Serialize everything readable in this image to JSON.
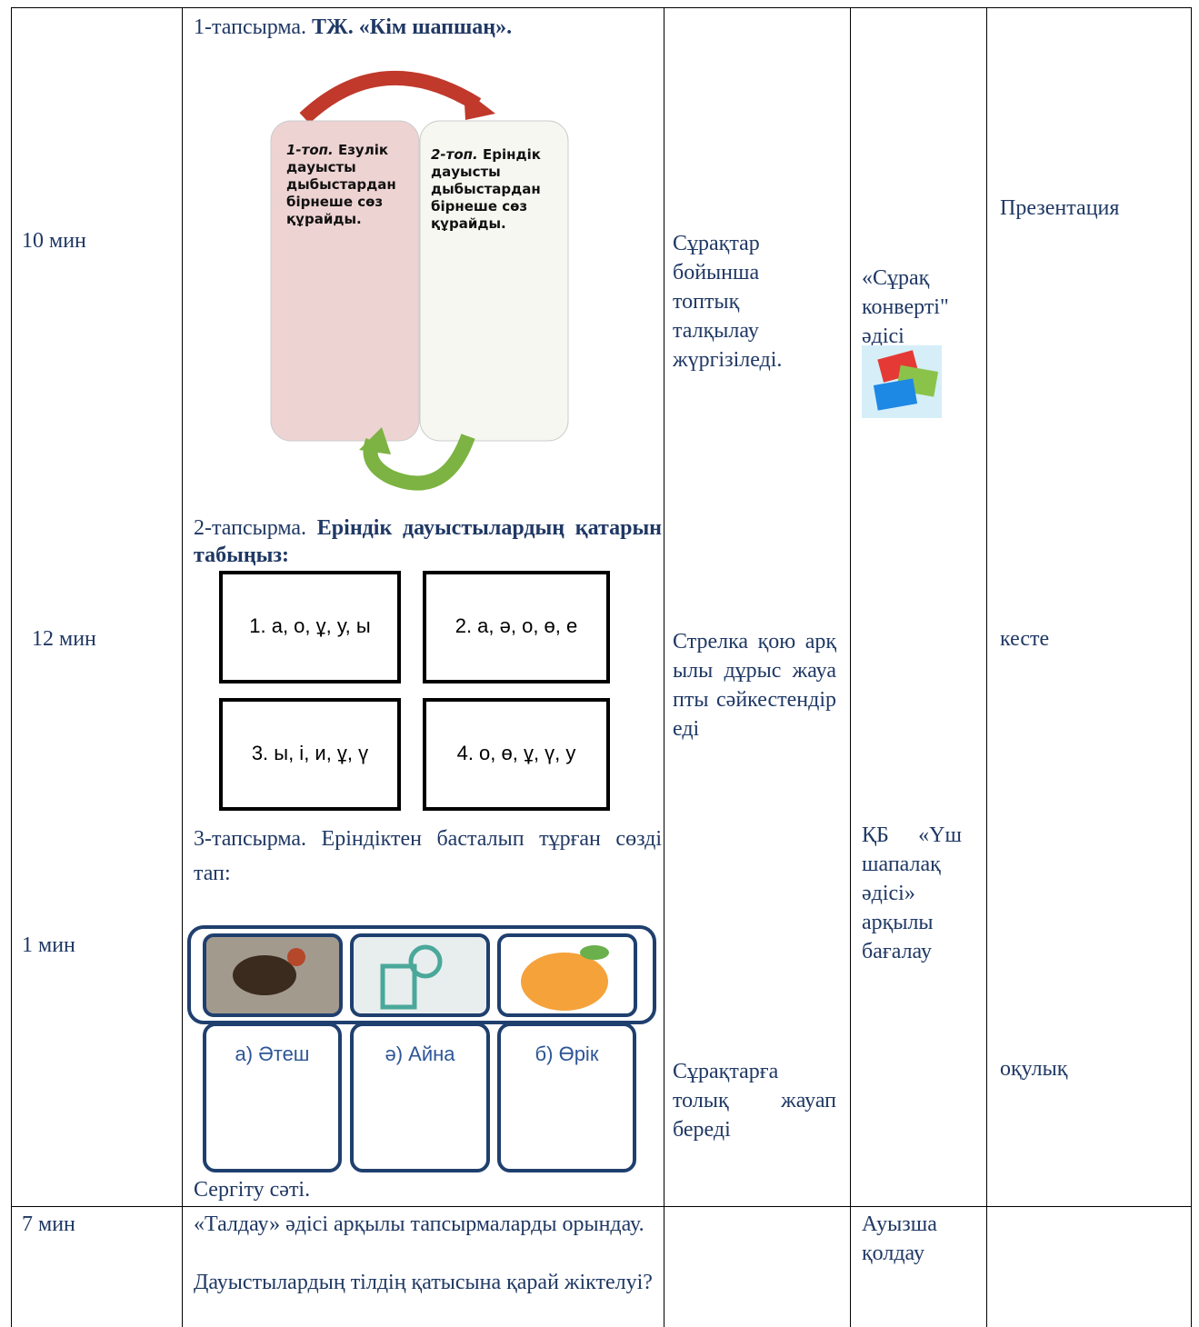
{
  "row1": {
    "times": [
      "10 мин",
      "12 мин",
      "1 мин"
    ],
    "task1": {
      "label": "1-тапсырма.",
      "title": "ТЖ. «Кім шапшаң»."
    },
    "groups": [
      {
        "name": "1-топ.",
        "text": "Езулік дауысты дыбыстардан бірнеше сөз құрайды."
      },
      {
        "name": "2-топ.",
        "text": "Еріндік дауысты дыбыстардан бірнеше сөз құрайды."
      }
    ],
    "task2": {
      "label": "2-тапсырма.",
      "title": "Еріндік дауыстылардың қатарын табыңыз:",
      "options": [
        "1. а, о, ұ, у, ы",
        "2. а, ә, о, ө, е",
        "3. ы, і, и, ұ, ү",
        "4. о, ө, ұ, ү, у"
      ]
    },
    "task3": {
      "text": "3-тапсырма. Еріндіктен басталып тұрған сөзді тап:",
      "answers": [
        "а) Әтеш",
        "ә) Айна",
        "б) Өрік"
      ]
    },
    "break": "Сергіту сәті.",
    "activities": [
      "Сұрақтар бойынша топтық талқылау жүргізіледі.",
      "Стрелка қою арқылы дұрыс жауапты сәйкестендіреді",
      "Сұрақтарға толық жауап береді"
    ],
    "assessment": [
      "«Сұрақ конверті\" әдісі",
      "ҚБ «Үш шапалақ әдісі» арқылы бағалау"
    ],
    "resources": [
      "Презентация",
      "кесте",
      "оқулық"
    ]
  },
  "row2": {
    "time": "7 мин",
    "lines": [
      "«Талдау» әдісі арқылы тапсырмаларды орындау.",
      "Дауыстылардың тілдің қатысына қарай жіктелуі?"
    ],
    "assessment": "Ауызша қолдау"
  }
}
